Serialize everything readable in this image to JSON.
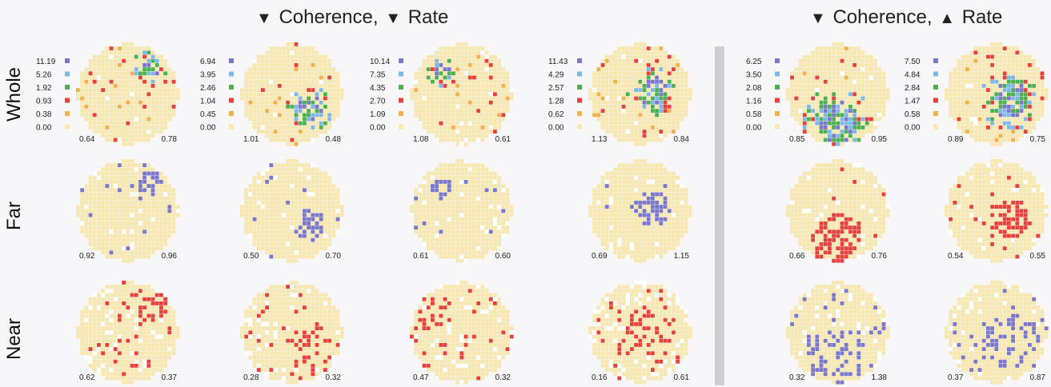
{
  "titles": {
    "left": {
      "arrow1": "▼",
      "text1": "Coherence,",
      "arrow2": "▼",
      "text2": "Rate"
    },
    "right": {
      "arrow1": "▼",
      "text1": "Coherence,",
      "arrow2": "▲",
      "text2": "Rate"
    }
  },
  "row_labels": [
    "Whole",
    "Far",
    "Near"
  ],
  "colors": {
    "background_cell": "#f7e7b0",
    "levels": [
      "#f7e7b0",
      "#f6b04a",
      "#e8413b",
      "#4caf50",
      "#7fb8e6",
      "#7b77c9"
    ]
  },
  "legends": [
    [
      "11.19",
      "5.26",
      "1.92",
      "0.93",
      "0.38",
      "0.00"
    ],
    [
      "6.94",
      "3.95",
      "2.46",
      "1.04",
      "0.45",
      "0.00"
    ],
    [
      "10.14",
      "7.35",
      "4.35",
      "2.70",
      "1.09",
      "0.00"
    ],
    [
      "11.43",
      "4.29",
      "2.57",
      "1.28",
      "0.62",
      "0.00"
    ],
    [
      "6.25",
      "3.50",
      "2.08",
      "1.16",
      "0.58",
      "0.00"
    ],
    [
      "7.50",
      "4.84",
      "2.84",
      "1.47",
      "0.58",
      "0.00"
    ]
  ],
  "corner_values": {
    "whole": [
      [
        "0.64",
        "0.78"
      ],
      [
        "1.01",
        "0.48"
      ],
      [
        "1.08",
        "0.61"
      ],
      [
        "1.13",
        "0.84"
      ],
      [
        "0.85",
        "0.95"
      ],
      [
        "0.89",
        "0.75"
      ]
    ],
    "far": [
      [
        "0.92",
        "0.96"
      ],
      [
        "0.50",
        "0.70"
      ],
      [
        "0.61",
        "0.60"
      ],
      [
        "0.69",
        "1.15"
      ],
      [
        "0.66",
        "0.76"
      ],
      [
        "0.54",
        "0.55"
      ]
    ],
    "near": [
      [
        "0.62",
        "0.37"
      ],
      [
        "0.28",
        "0.32"
      ],
      [
        "0.47",
        "0.32"
      ],
      [
        "0.16",
        "0.61"
      ],
      [
        "0.32",
        "1.38"
      ],
      [
        "0.37",
        "0.87"
      ]
    ]
  }
}
